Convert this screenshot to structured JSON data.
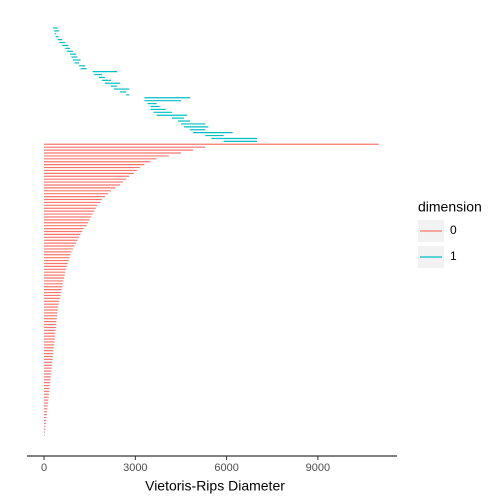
{
  "chart_data": {
    "type": "barcode",
    "x_label": "Vietoris-Rips Diameter",
    "xlim": [
      -560,
      11600
    ],
    "xticks": [
      0,
      3000,
      6000,
      9000
    ],
    "legend_title": "dimension",
    "legend_position": "right",
    "series": [
      {
        "name": "1",
        "color": "#00BFC4",
        "start": [
          300,
          330,
          350,
          380,
          450,
          500,
          600,
          700,
          750,
          850,
          900,
          950,
          1000,
          1150,
          1200,
          1600,
          1650,
          1800,
          1900,
          2000,
          2200,
          2300,
          2500,
          2700,
          3300,
          3300,
          3400,
          3500,
          3500,
          3600,
          3700,
          4200,
          4400,
          4500,
          4600,
          4800,
          4900,
          5300,
          5500,
          5900
        ],
        "values": [
          450,
          500,
          400,
          480,
          600,
          700,
          800,
          850,
          950,
          1050,
          1100,
          1200,
          1150,
          1350,
          1400,
          2400,
          1900,
          2000,
          2200,
          2500,
          2400,
          2800,
          2700,
          2800,
          4800,
          4500,
          3700,
          3800,
          4000,
          4200,
          4700,
          4600,
          4800,
          5300,
          5400,
          5300,
          6200,
          5900,
          7000,
          7000
        ]
      },
      {
        "name": "0",
        "color": "#F8766D",
        "values": [
          11000,
          5300,
          4900,
          4500,
          4100,
          3700,
          3500,
          3300,
          3150,
          3050,
          2950,
          2800,
          2700,
          2600,
          2500,
          2350,
          2200,
          2100,
          2000,
          1900,
          1850,
          1750,
          1700,
          1650,
          1600,
          1550,
          1500,
          1450,
          1400,
          1300,
          1250,
          1200,
          1150,
          1100,
          1050,
          1000,
          950,
          900,
          870,
          840,
          810,
          780,
          750,
          720,
          700,
          680,
          660,
          640,
          620,
          600,
          580,
          560,
          540,
          520,
          500,
          480,
          460,
          450,
          440,
          430,
          420,
          410,
          400,
          390,
          380,
          370,
          360,
          350,
          340,
          330,
          320,
          310,
          300,
          290,
          280,
          270,
          260,
          250,
          240,
          230,
          220,
          210,
          200,
          190,
          180,
          170,
          160,
          150,
          140,
          130,
          120,
          110,
          100,
          90,
          80,
          70,
          60,
          50,
          40,
          30,
          20
        ]
      }
    ]
  }
}
